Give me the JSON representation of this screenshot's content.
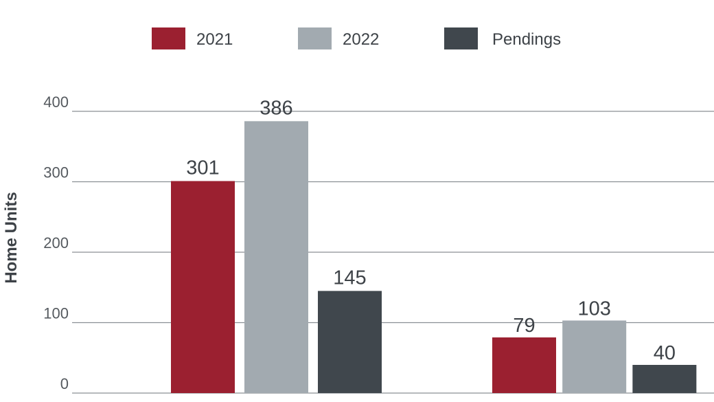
{
  "chart_data": {
    "type": "bar",
    "ylabel": "Home Units",
    "xlabel": "",
    "title": "",
    "ylim": [
      0,
      400
    ],
    "yticks": [
      0,
      100,
      200,
      300,
      400
    ],
    "grid": true,
    "legend_position": "top-center",
    "categories": [
      "",
      ""
    ],
    "series": [
      {
        "name": "2021",
        "color": "#9b2030",
        "values": [
          301,
          79
        ]
      },
      {
        "name": "2022",
        "color": "#a2aab0",
        "values": [
          386,
          103
        ]
      },
      {
        "name": "Pendings",
        "color": "#40474d",
        "values": [
          145,
          40
        ]
      }
    ]
  }
}
